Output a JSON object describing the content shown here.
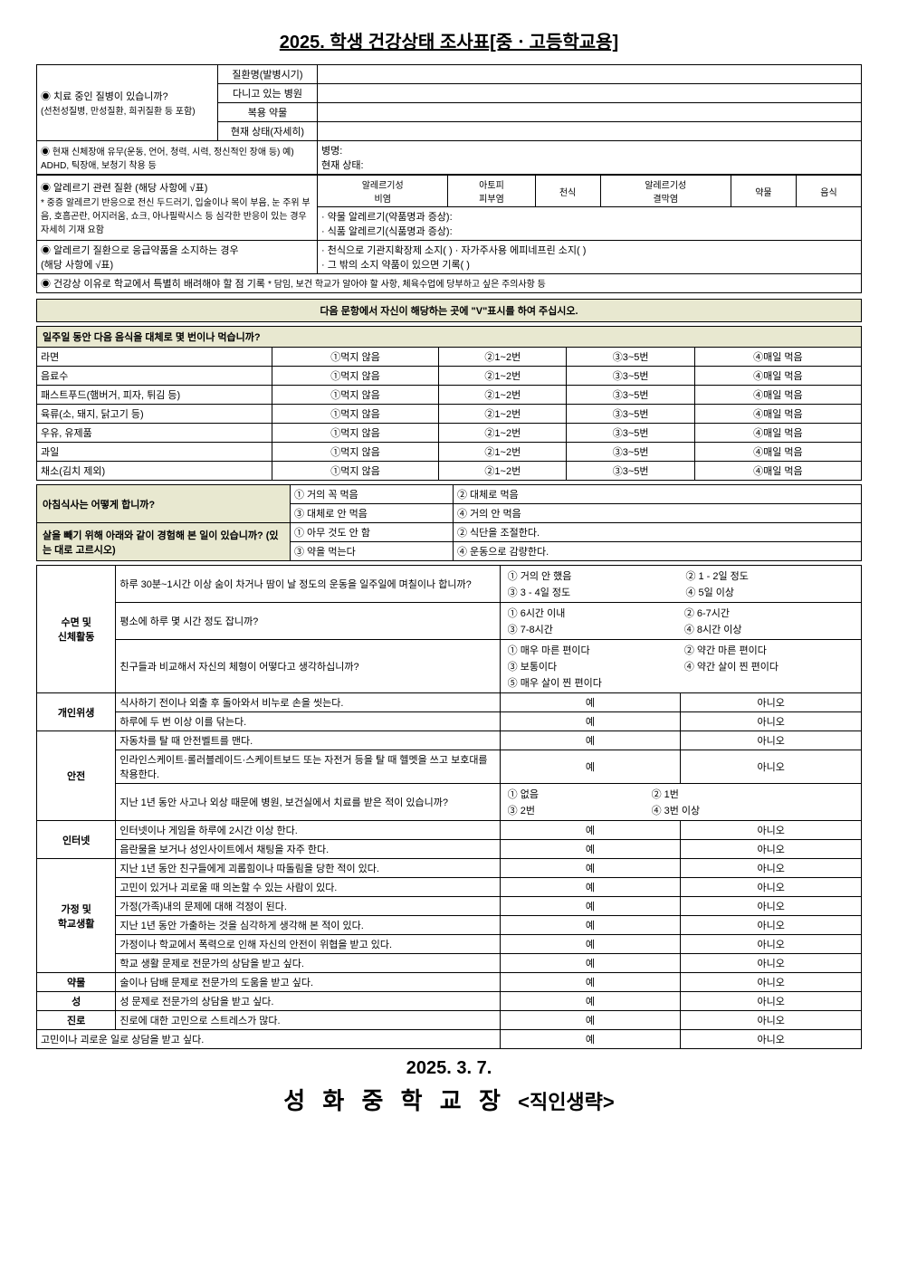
{
  "title": "2025. 학생 건강상태 조사표[중ㆍ고등학교용]",
  "disease": {
    "q": "◉ 치료 중인 질병이 있습니까?",
    "note": "(선천성질병, 만성질환, 희귀질환 등 포함)",
    "rows": [
      "질환명(발병시기)",
      "다니고 있는 병원",
      "복용 약물",
      "현재 상태(자세히)"
    ]
  },
  "disability": {
    "q": "◉ 현재 신체장애 유무(운동, 언어, 청력, 시력, 정신적인 장애 등)   예) ADHD, 틱장애, 보청기 착용 등",
    "r1": "병명:",
    "r2": "현재 상태:"
  },
  "allergy": {
    "q": "◉ 알레르기 관련 질환 (해당 사항에 √표)",
    "note": "* 중증 알레르기 반응으로 전신 두드러기, 입술이나 목이 부음, 눈 주위 부음, 호흡곤란, 어지러움, 쇼크, 아나필락시스 등 심각한 반응이 있는 경우 자세히 기재 요함",
    "cols": [
      "알레르기성\n비염",
      "아토피\n피부염",
      "천식",
      "알레르기성\n결막염",
      "약물",
      "음식"
    ],
    "detail1": "· 약물 알레르기(약품명과 증상):",
    "detail2": "· 식품 알레르기(식품명과 증상):"
  },
  "emergency": {
    "q": "◉ 알레르기 질환으로 응급약품을 소지하는 경우",
    "note": "(해당 사항에 √표)",
    "d1": "· 천식으로 기관지확장제 소지(      ) · 자가주사용 에피네프린 소지(      )",
    "d2": "· 그 밖의 소지 약품이 있으면 기록(                                                            )"
  },
  "special": {
    "q": "◉ 건강상 이유로 학교에서 특별히 배려해야 할 점 기록",
    "note": "* 담임, 보건 학교가 알아야 할 사항, 체육수업에 당부하고 싶은 주의사항 등"
  },
  "instruction": "다음 문항에서 자신이 해당하는 곳에 \"V\"표시를 하여 주십시오.",
  "food": {
    "q": "일주일 동안 다음 음식을 대체로 몇 번이나 먹습니까?",
    "items": [
      "라면",
      "음료수",
      "패스트푸드(햄버거, 피자, 튀김 등)",
      "육류(소, 돼지, 닭고기 등)",
      "우유, 유제품",
      "과일",
      "채소(김치 제외)"
    ],
    "opts": [
      "①먹지 않음",
      "②1~2번",
      "③3~5번",
      "④매일 먹음"
    ]
  },
  "breakfast": {
    "q": "아침식사는 어떻게 합니까?",
    "opts": [
      "① 거의 꼭 먹음",
      "② 대체로 먹음",
      "③ 대체로 안 먹음",
      "④ 거의 안 먹음"
    ]
  },
  "diet": {
    "q": "살을 빼기 위해 아래와 같이 경험해 본 일이 있습니까? (있는 대로 고르시오)",
    "opts": [
      "① 아무 것도 안 함",
      "② 식단을 조절한다.",
      "③ 약을 먹는다",
      "④ 운동으로 감량한다."
    ]
  },
  "categories": [
    {
      "name": "수면 및\n신체활동",
      "rows": [
        {
          "q": "하루 30분~1시간 이상 숨이 차거나 땀이 날 정도의 운동을 일주일에 며칠이나 합니까?",
          "opts": [
            "① 거의 안 했음",
            "② 1 - 2일 정도",
            "③ 3 - 4일 정도",
            "④ 5일 이상"
          ]
        },
        {
          "q": "평소에 하루 몇 시간 정도 잡니까?",
          "opts": [
            "① 6시간 이내",
            "② 6-7시간",
            "③ 7-8시간",
            "④ 8시간 이상"
          ]
        },
        {
          "q": "친구들과 비교해서 자신의 체형이 어떻다고 생각하십니까?",
          "opts": [
            "① 매우 마른 편이다",
            "② 약간 마른 편이다",
            "③ 보통이다",
            "④ 약간 살이 찐 편이다",
            "⑤ 매우 살이 찐 편이다"
          ]
        }
      ]
    },
    {
      "name": "개인위생",
      "rows": [
        {
          "q": "식사하기 전이나 외출 후 돌아와서 비누로 손을 씻는다.",
          "yn": true
        },
        {
          "q": "하루에 두 번 이상 이를 닦는다.",
          "yn": true
        }
      ]
    },
    {
      "name": "안전",
      "rows": [
        {
          "q": "자동차를 탈 때 안전벨트를 맨다.",
          "yn": true
        },
        {
          "q": "인라인스케이트·롤러블레이드·스케이트보드 또는 자전거 등을 탈 때 헬멧을 쓰고 보호대를 착용한다.",
          "yn": true
        },
        {
          "q": "지난 1년 동안 사고나 외상 때문에 병원, 보건실에서 치료를 받은 적이 있습니까?",
          "opts": [
            "① 없음",
            "② 1번",
            "③ 2번",
            "④ 3번 이상"
          ]
        }
      ]
    },
    {
      "name": "인터넷",
      "rows": [
        {
          "q": "인터넷이나 게임을 하루에 2시간 이상 한다.",
          "yn": true
        },
        {
          "q": "음란물을 보거나 성인사이트에서 채팅을 자주 한다.",
          "yn": true
        }
      ]
    },
    {
      "name": "가정 및\n학교생활",
      "rows": [
        {
          "q": "지난 1년 동안 친구들에게 괴롭힘이나 따돌림을 당한 적이 있다.",
          "yn": true
        },
        {
          "q": "고민이 있거나 괴로울 때 의논할 수 있는 사람이 있다.",
          "yn": true
        },
        {
          "q": "가정(가족)내의 문제에 대해 걱정이 된다.",
          "yn": true
        },
        {
          "q": "지난 1년 동안 가출하는 것을 심각하게 생각해 본 적이 있다.",
          "yn": true
        },
        {
          "q": "가정이나 학교에서 폭력으로 인해 자신의 안전이 위협을 받고 있다.",
          "yn": true
        },
        {
          "q": "학교 생활 문제로 전문가의 상담을 받고 싶다.",
          "yn": true
        }
      ]
    },
    {
      "name": "약물",
      "rows": [
        {
          "q": "술이나 담배 문제로 전문가의 도움을 받고 싶다.",
          "yn": true
        }
      ]
    },
    {
      "name": "성",
      "rows": [
        {
          "q": "성 문제로 전문가의 상담을 받고 싶다.",
          "yn": true
        }
      ]
    },
    {
      "name": "진로",
      "rows": [
        {
          "q": "진로에 대한 고민으로 스트레스가 많다.",
          "yn": true
        }
      ]
    }
  ],
  "lastq": "고민이나 괴로운 일로 상담을 받고 싶다.",
  "yes": "예",
  "no": "아니오",
  "date": "2025. 3. 7.",
  "sig": "성 화 중 학 교 장",
  "stamp": "<직인생략>"
}
